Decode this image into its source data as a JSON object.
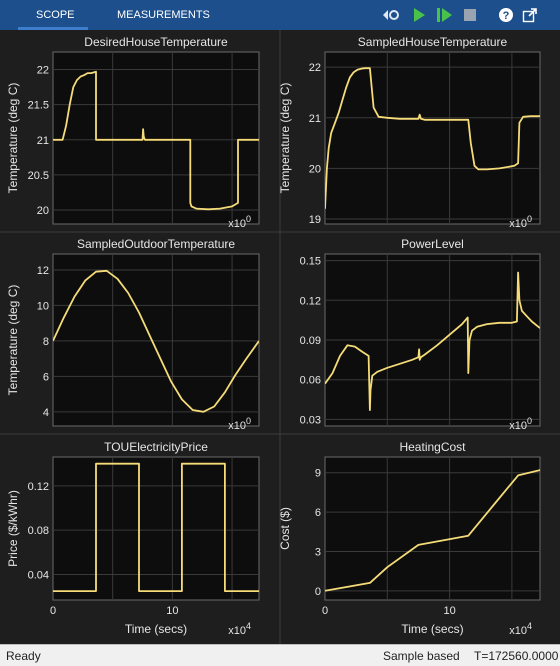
{
  "toolbar": {
    "tabs": [
      {
        "label": "SCOPE"
      },
      {
        "label": "MEASUREMENTS"
      }
    ],
    "buttons": [
      {
        "icon": "step-back-icon"
      },
      {
        "icon": "run-icon"
      },
      {
        "icon": "step-forward-icon"
      },
      {
        "icon": "stop-icon"
      },
      {
        "icon": "help-icon"
      },
      {
        "icon": "undock-icon"
      }
    ]
  },
  "colors": {
    "trace": "#f5dc78",
    "axes_bg": "#0d0d0d",
    "panel_bg": "#1e1e1e",
    "grid": "#3a3a3a",
    "text": "#e6e6e6"
  },
  "status": {
    "ready": "Ready",
    "mode": "Sample based",
    "time": "T=172560.0000"
  },
  "chart_data": [
    {
      "type": "line",
      "title": "DesiredHouseTemperature",
      "ylabel": "Temperature (deg C)",
      "xlabel": "",
      "xlim": [
        0,
        17.256
      ],
      "ylim": [
        19.8,
        22.25
      ],
      "yticks": [
        20,
        20.5,
        21,
        21.5,
        22
      ],
      "xtick_labels": [],
      "exponent": "x10^0",
      "x": [
        0,
        0.8,
        1.1,
        1.4,
        1.7,
        2.0,
        2.3,
        2.6,
        2.9,
        3.2,
        3.6,
        3.6,
        7.5,
        7.55,
        7.6,
        7.65,
        7.7,
        8.0,
        11.5,
        11.5,
        11.6,
        12.0,
        13.0,
        14.0,
        15.0,
        15.5,
        15.5,
        17.256
      ],
      "y": [
        21.0,
        21.0,
        21.2,
        21.5,
        21.75,
        21.85,
        21.9,
        21.92,
        21.95,
        21.95,
        21.97,
        21.0,
        21.0,
        21.15,
        21.05,
        21.02,
        21.0,
        21.0,
        21.0,
        20.1,
        20.05,
        20.02,
        20.01,
        20.02,
        20.05,
        20.1,
        21.0,
        21.0
      ]
    },
    {
      "type": "line",
      "title": "SampledHouseTemperature",
      "ylabel": "Temperature (deg C)",
      "xlabel": "",
      "xlim": [
        0,
        17.256
      ],
      "ylim": [
        18.9,
        22.3
      ],
      "yticks": [
        19,
        20,
        21,
        22
      ],
      "xtick_labels": [],
      "exponent": "x10^0",
      "x": [
        0,
        0.15,
        0.3,
        0.5,
        0.8,
        1.1,
        1.4,
        1.7,
        2.0,
        2.3,
        2.6,
        2.9,
        3.2,
        3.6,
        3.9,
        4.3,
        5.0,
        6.0,
        7.5,
        7.6,
        7.7,
        8.0,
        9.0,
        10.0,
        11.5,
        11.7,
        12.0,
        12.3,
        13.0,
        14.0,
        15.2,
        15.5,
        15.6,
        15.9,
        16.5,
        17.256
      ],
      "y": [
        19.2,
        20.0,
        20.4,
        20.7,
        20.9,
        21.1,
        21.35,
        21.6,
        21.8,
        21.9,
        21.95,
        21.97,
        21.98,
        21.98,
        21.2,
        21.02,
        21.0,
        20.98,
        20.98,
        21.06,
        20.98,
        20.96,
        20.96,
        20.96,
        20.96,
        20.5,
        20.05,
        19.98,
        19.98,
        20.0,
        20.05,
        20.1,
        20.9,
        21.02,
        21.03,
        21.03
      ]
    },
    {
      "type": "line",
      "title": "SampledOutdoorTemperature",
      "ylabel": "Temperature (deg C)",
      "xlabel": "",
      "xlim": [
        0,
        17.256
      ],
      "ylim": [
        3.2,
        12.9
      ],
      "yticks": [
        4,
        6,
        8,
        10,
        12
      ],
      "xtick_labels": [],
      "exponent": "x10^0",
      "x": [
        0,
        0.9,
        1.8,
        2.7,
        3.6,
        4.5,
        5.4,
        6.3,
        7.2,
        8.1,
        9.0,
        9.9,
        10.8,
        11.7,
        12.6,
        13.5,
        14.4,
        15.3,
        16.2,
        17.256
      ],
      "y": [
        8.0,
        9.3,
        10.5,
        11.4,
        11.9,
        11.95,
        11.5,
        10.7,
        9.6,
        8.3,
        7.0,
        5.7,
        4.7,
        4.1,
        4.0,
        4.3,
        5.1,
        6.1,
        7.0,
        8.0
      ]
    },
    {
      "type": "line",
      "title": "PowerLevel",
      "ylabel": "",
      "xlabel": "",
      "xlim": [
        0,
        17.256
      ],
      "ylim": [
        0.025,
        0.155
      ],
      "yticks": [
        0.03,
        0.06,
        0.09,
        0.12,
        0.15
      ],
      "xtick_labels": [],
      "exponent": "x10^0",
      "x": [
        0,
        0.6,
        1.2,
        1.8,
        2.4,
        3.0,
        3.5,
        3.6,
        3.65,
        3.8,
        4.2,
        5.0,
        6.0,
        7.0,
        7.5,
        7.55,
        7.6,
        7.7,
        8.0,
        9.0,
        10.0,
        11.0,
        11.45,
        11.5,
        11.6,
        11.8,
        12.2,
        13.0,
        14.0,
        15.0,
        15.4,
        15.5,
        15.6,
        15.8,
        16.2,
        16.6,
        17.256
      ],
      "y": [
        0.057,
        0.065,
        0.078,
        0.086,
        0.085,
        0.081,
        0.078,
        0.037,
        0.052,
        0.063,
        0.066,
        0.069,
        0.072,
        0.075,
        0.077,
        0.083,
        0.075,
        0.077,
        0.079,
        0.086,
        0.094,
        0.102,
        0.107,
        0.065,
        0.09,
        0.097,
        0.1,
        0.102,
        0.103,
        0.103,
        0.104,
        0.141,
        0.12,
        0.112,
        0.108,
        0.104,
        0.099
      ]
    },
    {
      "type": "line",
      "title": "TOUElectricityPrice",
      "ylabel": "Price ($/kWhr)",
      "xlabel": "Time (secs)",
      "xlim": [
        0,
        17.256
      ],
      "ylim": [
        0.017,
        0.146
      ],
      "yticks": [
        0.04,
        0.08,
        0.12
      ],
      "xticks": [
        0,
        10
      ],
      "xtick_labels": [
        "0",
        "10"
      ],
      "exponent": "x10^4",
      "x": [
        0,
        3.6,
        3.6,
        7.2,
        7.2,
        10.8,
        10.8,
        14.4,
        14.4,
        17.256
      ],
      "y": [
        0.025,
        0.025,
        0.14,
        0.14,
        0.025,
        0.025,
        0.14,
        0.14,
        0.025,
        0.025
      ]
    },
    {
      "type": "line",
      "title": "HeatingCost",
      "ylabel": "Cost ($)",
      "xlabel": "Time (secs)",
      "xlim": [
        0,
        17.256
      ],
      "ylim": [
        -0.7,
        10.2
      ],
      "yticks": [
        0,
        3,
        6,
        9
      ],
      "xticks": [
        0,
        10
      ],
      "xtick_labels": [
        "0",
        "10"
      ],
      "exponent": "x10^4",
      "x": [
        0,
        1.5,
        3.6,
        5.0,
        7.5,
        11.5,
        13.5,
        15.5,
        17.256
      ],
      "y": [
        0,
        0.25,
        0.6,
        1.8,
        3.5,
        4.2,
        6.5,
        8.8,
        9.2
      ]
    }
  ]
}
